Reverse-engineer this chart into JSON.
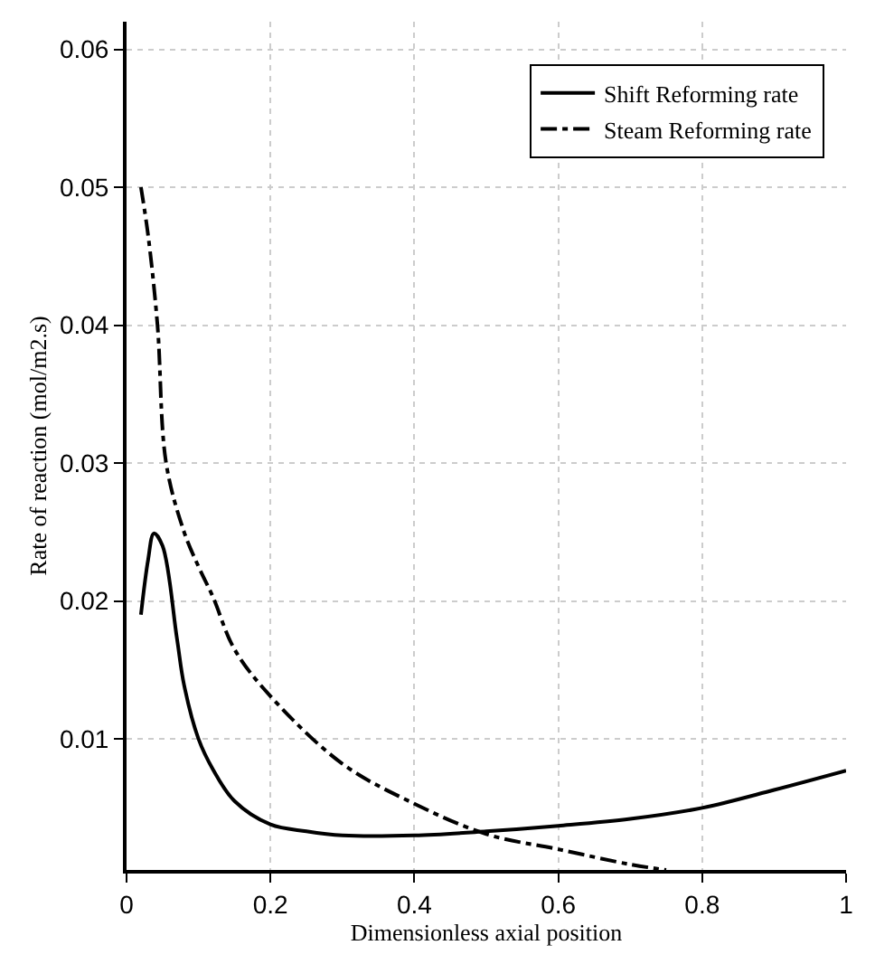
{
  "chart_data": {
    "type": "line",
    "xlabel": "Dimensionless axial position",
    "ylabel": "Rate of reaction (mol/m2.s)",
    "xlim": [
      0,
      1
    ],
    "xticks": [
      0,
      0.2,
      0.4,
      0.6,
      0.8,
      1
    ],
    "ylim": [
      0.0005,
      0.062
    ],
    "yticks": [
      0.01,
      0.02,
      0.03,
      0.04,
      0.05,
      0.06
    ],
    "grid": true,
    "legend": "top right",
    "series": [
      {
        "name": "Shift Reforming rate",
        "color": "#000000",
        "line_style": "solid",
        "x": [
          0.02,
          0.03,
          0.038,
          0.05,
          0.07,
          0.08,
          0.1,
          0.12,
          0.15,
          0.2,
          0.25,
          0.3,
          0.4,
          0.5,
          0.6,
          0.7,
          0.8,
          0.9,
          1.0
        ],
        "values": [
          0.019,
          0.023,
          0.0249,
          0.024,
          0.0173,
          0.0139,
          0.01,
          0.0078,
          0.0055,
          0.0038,
          0.0033,
          0.003,
          0.003,
          0.0033,
          0.0037,
          0.0042,
          0.005,
          0.0063,
          0.0077
        ]
      },
      {
        "name": "Steam Reforming rate",
        "color": "#000000",
        "line_style": "dashdot",
        "x": [
          0.02,
          0.03,
          0.043,
          0.055,
          0.08,
          0.1,
          0.12,
          0.15,
          0.2,
          0.3,
          0.4,
          0.5,
          0.6,
          0.7,
          0.75
        ],
        "values": [
          0.05,
          0.0465,
          0.04,
          0.03,
          0.025,
          0.0225,
          0.0203,
          0.0165,
          0.0131,
          0.0082,
          0.0053,
          0.0031,
          0.002,
          0.0009,
          0.0005
        ]
      }
    ]
  }
}
